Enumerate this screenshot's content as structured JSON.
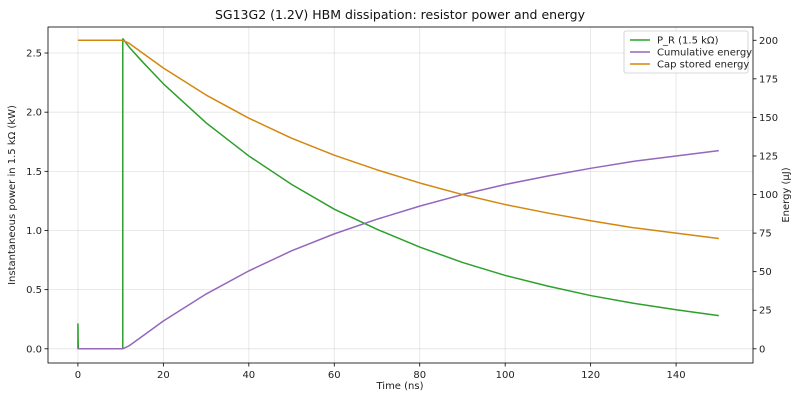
{
  "chart_data": {
    "type": "line",
    "title": "SG13G2 (1.2V) HBM dissipation: resistor power and energy",
    "xlabel": "Time (ns)",
    "ylabel_left": "Instantaneous power in 1.5 kΩ (kW)",
    "ylabel_right": "Energy (µJ)",
    "xlim": [
      -7,
      158
    ],
    "ylim_left": [
      -0.12,
      2.72
    ],
    "ylim_right": [
      -9.2,
      208.6
    ],
    "x_ticks": [
      "0",
      "20",
      "40",
      "60",
      "80",
      "100",
      "120",
      "140"
    ],
    "y_left_ticks": [
      "0.0",
      "0.5",
      "1.0",
      "1.5",
      "2.0",
      "2.5"
    ],
    "y_right_ticks": [
      "0",
      "25",
      "50",
      "75",
      "100",
      "125",
      "150",
      "175",
      "200"
    ],
    "grid": true,
    "legend_position": "top-right",
    "series": [
      {
        "name": "P_R (1.5 kΩ)",
        "axis": "left",
        "color": "#2ca02c",
        "x": [
          0,
          0,
          0.02,
          0.03,
          0.05,
          0.1,
          10.5,
          10.5,
          10.55,
          12,
          15,
          20,
          30,
          40,
          50,
          60,
          70,
          80,
          90,
          100,
          110,
          120,
          130,
          140,
          150
        ],
        "y": [
          0.0,
          0.21,
          0.21,
          0.15,
          0.08,
          0.0,
          0.0,
          2.62,
          2.62,
          2.55,
          2.43,
          2.24,
          1.91,
          1.63,
          1.39,
          1.18,
          1.01,
          0.86,
          0.73,
          0.62,
          0.53,
          0.45,
          0.385,
          0.33,
          0.28
        ]
      },
      {
        "name": "Cumulative energy",
        "axis": "right",
        "color": "#9467bd",
        "x": [
          0,
          10.5,
          12,
          15,
          20,
          30,
          40,
          50,
          60,
          70,
          80,
          90,
          100,
          110,
          120,
          130,
          140,
          150
        ],
        "y": [
          0,
          0,
          2.0,
          8.0,
          18.0,
          35.5,
          50.5,
          63.5,
          74.5,
          84.0,
          92.5,
          100.0,
          106.5,
          112.0,
          117.0,
          121.5,
          125.0,
          128.5
        ]
      },
      {
        "name": "Cap stored energy",
        "axis": "right",
        "color": "#d4870f",
        "x": [
          0,
          10.5,
          12,
          15,
          20,
          30,
          40,
          50,
          60,
          70,
          80,
          90,
          100,
          110,
          120,
          130,
          140,
          150
        ],
        "y": [
          200,
          200,
          198,
          192,
          182,
          164.5,
          149.5,
          136.5,
          125.5,
          116.0,
          107.5,
          100.0,
          93.5,
          88.0,
          83.0,
          78.5,
          75.0,
          71.5
        ]
      }
    ]
  }
}
